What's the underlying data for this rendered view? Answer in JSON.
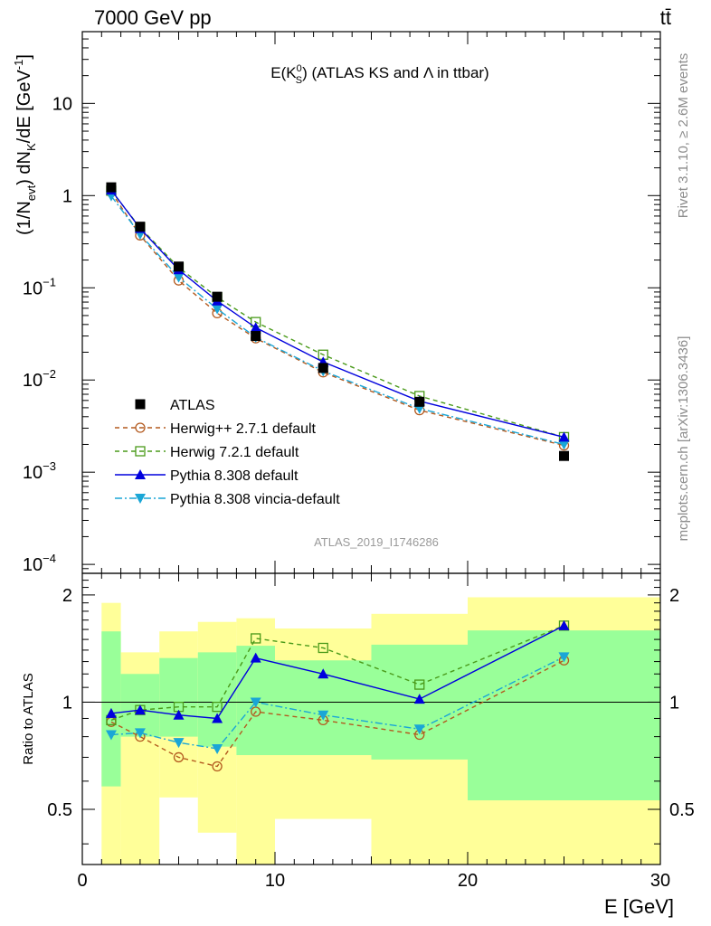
{
  "header": {
    "energy_label": "7000 GeV pp",
    "process_label": "tt̄"
  },
  "side_labels": {
    "rivet": "Rivet 3.1.10, ≥ 2.6M events",
    "source": "mcplots.cern.ch [arXiv:1306.3436]"
  },
  "watermark": "ATLAS_2019_I1746286",
  "colors": {
    "data": "#000000",
    "herwig_pp": "#b35a1f",
    "herwig7": "#4a9a1a",
    "pythia": "#0000dd",
    "vincia": "#1aa6d6",
    "band_inner": "#99ff99",
    "band_outer": "#ffff99"
  },
  "chart_data": [
    {
      "type": "line",
      "panel": "main",
      "title": "E(K_S^0) (ATLAS KS and Λ in ttbar)",
      "title_parts": {
        "pre": "E(K",
        "sup": "0",
        "sub": "S",
        "post": ") (ATLAS KS and Λ in ttbar)"
      },
      "ylabel": "(1/N_evt) dN_K/dE [GeV^-1]",
      "ylabel_parts": {
        "a": "(1/N",
        "a_sub": "evt",
        "b": ") dN",
        "b_sub": "K",
        "c": "/dE [GeV",
        "c_sup": "-1",
        "d": "]"
      },
      "y_scale": "log",
      "ylim": [
        8e-05,
        60
      ],
      "xlim": [
        0,
        30
      ],
      "y_ticks": [
        {
          "v": 0.0001,
          "mant": "10",
          "exp": "−4"
        },
        {
          "v": 0.001,
          "mant": "10",
          "exp": "−3"
        },
        {
          "v": 0.01,
          "mant": "10",
          "exp": "−2"
        },
        {
          "v": 0.1,
          "mant": "10",
          "exp": "−1"
        },
        {
          "v": 1,
          "mant": "1",
          "exp": ""
        },
        {
          "v": 10,
          "mant": "10",
          "exp": ""
        }
      ],
      "x": [
        1.5,
        3,
        5,
        7,
        9,
        12.5,
        17.5,
        25
      ],
      "legend_position": "lower-left",
      "series": [
        {
          "key": "atlas",
          "name": "ATLAS",
          "values": [
            1.23,
            0.46,
            0.17,
            0.08,
            0.03,
            0.0135,
            0.0058,
            0.0015
          ]
        },
        {
          "key": "herwig_pp",
          "name": "Herwig++ 2.7.1 default",
          "values": [
            1.09,
            0.37,
            0.12,
            0.053,
            0.0283,
            0.0121,
            0.0047,
            0.00195
          ]
        },
        {
          "key": "herwig7",
          "name": "Herwig 7.2.1 default",
          "values": [
            1.13,
            0.45,
            0.166,
            0.079,
            0.0425,
            0.0188,
            0.0067,
            0.0024
          ]
        },
        {
          "key": "pythia",
          "name": "Pythia 8.308 default",
          "values": [
            1.15,
            0.44,
            0.157,
            0.072,
            0.037,
            0.0157,
            0.0059,
            0.0024
          ]
        },
        {
          "key": "vincia",
          "name": "Pythia 8.308 vincia-default",
          "values": [
            0.99,
            0.38,
            0.13,
            0.059,
            0.029,
            0.0125,
            0.0049,
            0.002
          ]
        }
      ]
    },
    {
      "type": "line",
      "panel": "ratio",
      "ylabel": "Ratio to ATLAS",
      "xlabel": "E [GeV]",
      "y_scale": "log",
      "ylim": [
        0.35,
        2.3
      ],
      "xlim": [
        0,
        30
      ],
      "x_ticks": [
        0,
        10,
        20,
        30
      ],
      "y_ticks": [
        0.5,
        1,
        2
      ],
      "bands": [
        {
          "xlo": 1,
          "xhi": 2,
          "inner": [
            0.58,
            1.58
          ],
          "outer": [
            0.35,
            1.9
          ]
        },
        {
          "xlo": 2,
          "xhi": 4,
          "inner": [
            0.8,
            1.2
          ],
          "outer": [
            0.35,
            1.38
          ]
        },
        {
          "xlo": 4,
          "xhi": 6,
          "inner": [
            0.8,
            1.33
          ],
          "outer": [
            0.54,
            1.58
          ]
        },
        {
          "xlo": 6,
          "xhi": 8,
          "inner": [
            0.75,
            1.38
          ],
          "outer": [
            0.43,
            1.68
          ]
        },
        {
          "xlo": 8,
          "xhi": 10,
          "inner": [
            0.71,
            1.44
          ],
          "outer": [
            0.35,
            1.72
          ]
        },
        {
          "xlo": 10,
          "xhi": 15,
          "inner": [
            0.71,
            1.31
          ],
          "outer": [
            0.47,
            1.61
          ]
        },
        {
          "xlo": 15,
          "xhi": 20,
          "inner": [
            0.69,
            1.45
          ],
          "outer": [
            0.35,
            1.77
          ]
        },
        {
          "xlo": 20,
          "xhi": 30,
          "inner": [
            0.53,
            1.59
          ],
          "outer": [
            0.35,
            1.97
          ]
        }
      ],
      "series": [
        {
          "key": "herwig_pp",
          "name": "Herwig++ 2.7.1 default",
          "values": [
            0.88,
            0.8,
            0.7,
            0.66,
            0.94,
            0.89,
            0.81,
            1.31
          ]
        },
        {
          "key": "herwig7",
          "name": "Herwig 7.2.1 default",
          "values": [
            0.89,
            0.95,
            0.97,
            0.97,
            1.51,
            1.42,
            1.12,
            1.64
          ]
        },
        {
          "key": "pythia",
          "name": "Pythia 8.308 default",
          "values": [
            0.93,
            0.95,
            0.92,
            0.9,
            1.33,
            1.2,
            1.02,
            1.64
          ]
        },
        {
          "key": "vincia",
          "name": "Pythia 8.308 vincia-default",
          "values": [
            0.81,
            0.82,
            0.77,
            0.74,
            1.0,
            0.92,
            0.84,
            1.34
          ]
        }
      ]
    }
  ]
}
